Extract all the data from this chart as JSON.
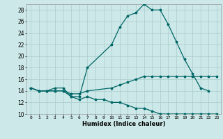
{
  "xlabel": "Humidex (Indice chaleur)",
  "color": "#006666",
  "bg_color": "#cce8e8",
  "grid_color": "#aacccc",
  "ylim": [
    10,
    29
  ],
  "xlim": [
    -0.5,
    23.5
  ],
  "yticks": [
    10,
    12,
    14,
    16,
    18,
    20,
    22,
    24,
    26,
    28
  ],
  "xticks": [
    0,
    1,
    2,
    3,
    4,
    5,
    6,
    7,
    8,
    9,
    10,
    11,
    12,
    13,
    14,
    15,
    16,
    17,
    18,
    19,
    20,
    21,
    22,
    23
  ],
  "x_max": [
    0,
    1,
    2,
    3,
    4,
    5,
    6,
    7,
    10,
    11,
    12,
    13,
    14,
    15,
    16,
    17,
    18,
    19,
    20,
    21,
    22
  ],
  "y_max": [
    14.5,
    14.0,
    14.0,
    14.5,
    14.5,
    13.0,
    13.0,
    18.0,
    22.0,
    25.0,
    27.0,
    27.5,
    29.0,
    28.0,
    28.0,
    25.5,
    22.5,
    19.5,
    17.0,
    14.5,
    14.0
  ],
  "x_mean": [
    0,
    1,
    2,
    3,
    4,
    5,
    6,
    7,
    10,
    11,
    12,
    13,
    14,
    15,
    16,
    17,
    18,
    19,
    20,
    21,
    22,
    23
  ],
  "y_mean": [
    14.5,
    14.0,
    14.0,
    14.0,
    14.0,
    13.5,
    13.5,
    14.0,
    14.5,
    15.0,
    15.5,
    16.0,
    16.5,
    16.5,
    16.5,
    16.5,
    16.5,
    16.5,
    16.5,
    16.5,
    16.5,
    16.5
  ],
  "x_min": [
    0,
    1,
    2,
    3,
    4,
    5,
    6,
    7,
    8,
    9,
    10,
    11,
    12,
    13,
    14,
    15,
    16,
    17,
    18,
    19,
    20,
    21,
    22,
    23
  ],
  "y_min": [
    14.5,
    14.0,
    14.0,
    14.0,
    14.0,
    13.0,
    12.5,
    13.0,
    12.5,
    12.5,
    12.0,
    12.0,
    11.5,
    11.0,
    11.0,
    10.5,
    10.0,
    10.0,
    10.0,
    10.0,
    10.0,
    10.0,
    10.0,
    10.0
  ]
}
